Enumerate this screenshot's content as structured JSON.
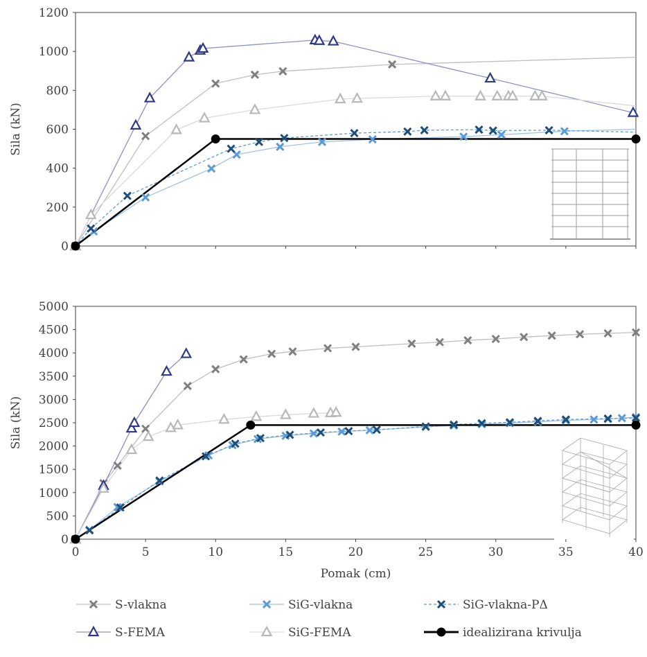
{
  "colors": {
    "s_vlakna": "#7f7f7f",
    "sig_vlakna": "#5b9bd5",
    "sig_vlakna_pd": "#1f4e79",
    "s_fema": "#2e3a87",
    "s_fema_line": "#8e8fc4",
    "sig_fema": "#b8b8b8",
    "idealizirana": "#000000",
    "axis": "#404040"
  },
  "legend": [
    {
      "key": "s_vlakna",
      "label": "S-vlakna",
      "marker": "x",
      "dash": false
    },
    {
      "key": "sig_vlakna",
      "label": "SiG-vlakna",
      "marker": "x",
      "dash": false
    },
    {
      "key": "sig_vlakna_pd",
      "label": "SiG-vlakna-PΔ",
      "marker": "x",
      "dash": true
    },
    {
      "key": "s_fema",
      "label": "S-FEMA",
      "marker": "triangle",
      "dash": false
    },
    {
      "key": "sig_fema",
      "label": "SiG-FEMA",
      "marker": "triangle",
      "dash": false
    },
    {
      "key": "idealizirana",
      "label": "idealizirana krivulja",
      "marker": "circle",
      "dash": false
    }
  ],
  "chart_data": [
    {
      "type": "line",
      "ylabel": "Sila (kN)",
      "xlabel": "",
      "xlim": [
        0,
        40
      ],
      "ylim": [
        0,
        1200
      ],
      "xticks": [
        0,
        5,
        10,
        15,
        20,
        25,
        30,
        35,
        40
      ],
      "yticks": [
        0,
        200,
        400,
        600,
        800,
        1000,
        1200
      ],
      "series": [
        {
          "name": "S-vlakna",
          "key": "s_vlakna",
          "marker": "x",
          "points": [
            [
              0,
              0
            ],
            [
              5,
              565
            ],
            [
              10,
              835
            ],
            [
              12.8,
              880
            ],
            [
              14.8,
              898
            ],
            [
              22.6,
              933
            ],
            [
              40,
              970
            ]
          ],
          "markers_upto": 22.6
        },
        {
          "name": "SiG-vlakna",
          "key": "sig_vlakna",
          "marker": "x",
          "points": [
            [
              0,
              0
            ],
            [
              1.3,
              75
            ],
            [
              5,
              250
            ],
            [
              9.7,
              398
            ],
            [
              11.5,
              470
            ],
            [
              14.6,
              510
            ],
            [
              17.6,
              535
            ],
            [
              21.2,
              548
            ],
            [
              27.7,
              562
            ],
            [
              30.4,
              572
            ],
            [
              34.9,
              590
            ],
            [
              40,
              600
            ]
          ],
          "markers_upto": 35
        },
        {
          "name": "SiG-vlakna-PΔ",
          "key": "sig_vlakna_pd",
          "marker": "x",
          "dash": true,
          "points": [
            [
              0,
              0
            ],
            [
              1.1,
              90
            ],
            [
              3.7,
              258
            ],
            [
              11.1,
              500
            ],
            [
              13.1,
              535
            ],
            [
              14.9,
              555
            ],
            [
              19.9,
              580
            ],
            [
              23.7,
              588
            ],
            [
              24.9,
              595
            ],
            [
              28.8,
              598
            ],
            [
              29.8,
              593
            ],
            [
              33.8,
              595
            ],
            [
              40,
              585
            ]
          ],
          "markers_upto": 34
        },
        {
          "name": "S-FEMA",
          "key": "s_fema",
          "marker": "triangle",
          "points": [
            [
              0,
              0
            ],
            [
              4.3,
              620
            ],
            [
              5.3,
              760
            ],
            [
              8.1,
              970
            ],
            [
              8.9,
              1005
            ],
            [
              9.1,
              1015
            ],
            [
              17.1,
              1058
            ],
            [
              17.4,
              1055
            ],
            [
              18.4,
              1052
            ],
            [
              29.6,
              862
            ],
            [
              39.8,
              685
            ]
          ],
          "markers_upto": 40
        },
        {
          "name": "SiG-FEMA",
          "key": "sig_fema",
          "marker": "triangle",
          "points": [
            [
              0,
              0
            ],
            [
              1.1,
              160
            ],
            [
              7.2,
              597
            ],
            [
              9.2,
              657
            ],
            [
              12.8,
              700
            ],
            [
              18.9,
              755
            ],
            [
              20.1,
              758
            ],
            [
              25.7,
              770
            ],
            [
              26.4,
              770
            ],
            [
              28.9,
              770
            ],
            [
              30.1,
              770
            ],
            [
              30.9,
              770
            ],
            [
              31.2,
              770
            ],
            [
              32.8,
              770
            ],
            [
              33.3,
              770
            ],
            [
              40,
              720
            ]
          ],
          "markers_upto": 34
        },
        {
          "name": "idealizirana krivulja",
          "key": "idealizirana",
          "marker": "circle",
          "points": [
            [
              0,
              0
            ],
            [
              10,
              550
            ],
            [
              40,
              550
            ]
          ],
          "markers_upto": 40
        }
      ]
    },
    {
      "type": "line",
      "ylabel": "Sila (kN)",
      "xlabel": "Pomak (cm)",
      "xlim": [
        0,
        40
      ],
      "ylim": [
        0,
        5000
      ],
      "xticks": [
        0,
        5,
        10,
        15,
        20,
        25,
        30,
        35,
        40
      ],
      "yticks": [
        0,
        500,
        1000,
        1500,
        2000,
        2500,
        3000,
        3500,
        4000,
        4500,
        5000
      ],
      "series": [
        {
          "name": "S-vlakna",
          "key": "s_vlakna",
          "marker": "x",
          "points": [
            [
              0,
              0
            ],
            [
              2,
              1200
            ],
            [
              3,
              1580
            ],
            [
              5,
              2370
            ],
            [
              8,
              3290
            ],
            [
              10,
              3650
            ],
            [
              12,
              3860
            ],
            [
              14,
              3980
            ],
            [
              15.5,
              4030
            ],
            [
              18,
              4100
            ],
            [
              20,
              4130
            ],
            [
              24,
              4200
            ],
            [
              26,
              4230
            ],
            [
              28,
              4270
            ],
            [
              30,
              4300
            ],
            [
              32,
              4340
            ],
            [
              34,
              4370
            ],
            [
              36,
              4400
            ],
            [
              38,
              4420
            ],
            [
              40,
              4440
            ]
          ],
          "markers_upto": 40
        },
        {
          "name": "SiG-vlakna",
          "key": "sig_vlakna",
          "marker": "x",
          "points": [
            [
              0,
              0
            ],
            [
              1,
              200
            ],
            [
              3,
              690
            ],
            [
              6,
              1240
            ],
            [
              9.5,
              1800
            ],
            [
              11.2,
              2020
            ],
            [
              13,
              2150
            ],
            [
              15,
              2220
            ],
            [
              17,
              2270
            ],
            [
              19,
              2310
            ],
            [
              21,
              2340
            ],
            [
              25,
              2410
            ],
            [
              27,
              2440
            ],
            [
              29,
              2470
            ],
            [
              31,
              2490
            ],
            [
              33,
              2520
            ],
            [
              35,
              2550
            ],
            [
              37,
              2570
            ],
            [
              38,
              2580
            ],
            [
              39,
              2600
            ],
            [
              40,
              2620
            ]
          ],
          "markers_upto": 40
        },
        {
          "name": "SiG-vlakna-PΔ",
          "key": "sig_vlakna_pd",
          "marker": "x",
          "dash": true,
          "points": [
            [
              0,
              0
            ],
            [
              1,
              190
            ],
            [
              3.2,
              680
            ],
            [
              6,
              1260
            ],
            [
              9.3,
              1780
            ],
            [
              11.4,
              2050
            ],
            [
              13.2,
              2170
            ],
            [
              15.3,
              2240
            ],
            [
              17.5,
              2290
            ],
            [
              19.5,
              2320
            ],
            [
              21.5,
              2350
            ],
            [
              25,
              2420
            ],
            [
              27,
              2460
            ],
            [
              29,
              2490
            ],
            [
              31,
              2510
            ],
            [
              33,
              2540
            ],
            [
              35,
              2570
            ],
            [
              38,
              2590
            ],
            [
              40,
              2600
            ]
          ],
          "markers_upto": 40
        },
        {
          "name": "S-FEMA",
          "key": "s_fema",
          "marker": "triangle",
          "points": [
            [
              0,
              0
            ],
            [
              2,
              1150
            ],
            [
              4,
              2380
            ],
            [
              4.2,
              2500
            ],
            [
              6.5,
              3600
            ],
            [
              7.9,
              3980
            ]
          ],
          "markers_upto": 40
        },
        {
          "name": "SiG-FEMA",
          "key": "sig_fema",
          "marker": "triangle",
          "points": [
            [
              0,
              0
            ],
            [
              2,
              1090
            ],
            [
              4,
              1920
            ],
            [
              5.2,
              2200
            ],
            [
              6.8,
              2390
            ],
            [
              7.3,
              2450
            ],
            [
              10.6,
              2570
            ],
            [
              12.9,
              2630
            ],
            [
              15,
              2670
            ],
            [
              17,
              2700
            ],
            [
              18.2,
              2710
            ],
            [
              18.6,
              2720
            ]
          ],
          "markers_upto": 40
        },
        {
          "name": "idealizirana krivulja",
          "key": "idealizirana",
          "marker": "circle",
          "points": [
            [
              0,
              0
            ],
            [
              12.5,
              2450
            ],
            [
              40,
              2450
            ]
          ],
          "markers_upto": 40
        }
      ]
    }
  ]
}
